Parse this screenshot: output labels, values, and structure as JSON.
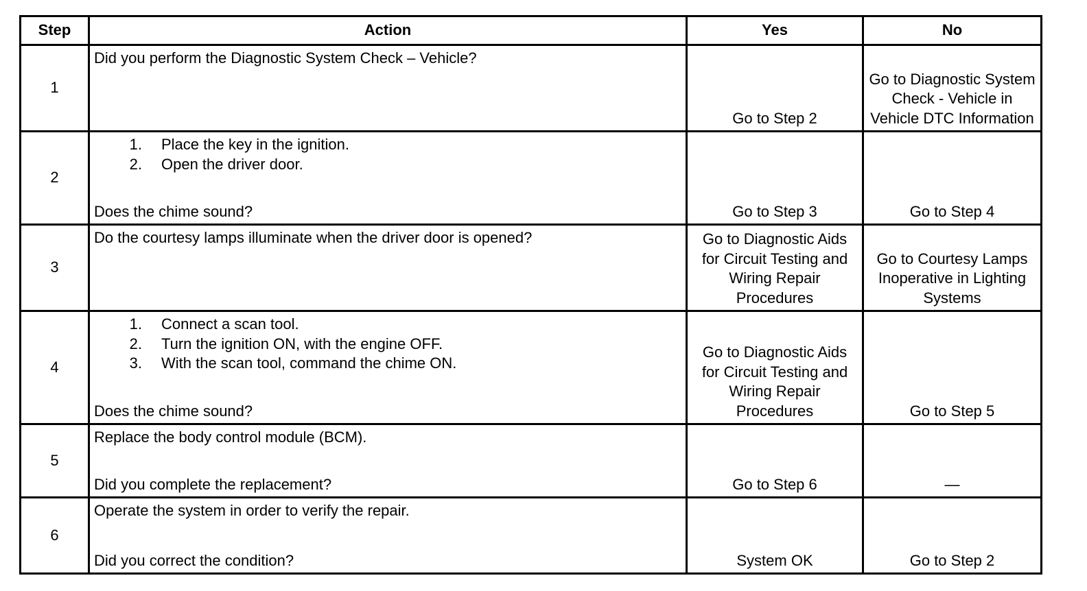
{
  "headers": {
    "step": "Step",
    "action": "Action",
    "yes": "Yes",
    "no": "No"
  },
  "rows": [
    {
      "step": "1",
      "intro": "Did you perform the Diagnostic System Check – Vehicle?",
      "items": [],
      "question": "",
      "yes": "Go to Step 2",
      "no": "Go to Diagnostic System Check - Vehicle in Vehicle DTC Information"
    },
    {
      "step": "2",
      "intro": "",
      "items": [
        {
          "n": "1.",
          "t": "Place the key in the ignition."
        },
        {
          "n": "2.",
          "t": "Open the driver door."
        }
      ],
      "question": "Does the chime sound?",
      "yes": "Go to Step 3",
      "no": "Go to Step 4"
    },
    {
      "step": "3",
      "intro": "Do the courtesy lamps illuminate when the driver door is opened?",
      "items": [],
      "question": "",
      "yes": "Go to Diagnostic Aids for Circuit Testing and Wiring Repair Procedures",
      "no": "Go to Courtesy Lamps Inoperative in Lighting Systems"
    },
    {
      "step": "4",
      "intro": "",
      "items": [
        {
          "n": "1.",
          "t": "Connect a scan tool."
        },
        {
          "n": "2.",
          "t": "Turn the ignition ON, with the engine OFF."
        },
        {
          "n": "3.",
          "t": "With the scan tool, command the chime ON."
        }
      ],
      "question": "Does the chime sound?",
      "yes": "Go to Diagnostic Aids for Circuit Testing and Wiring Repair Procedures",
      "no": "Go to Step 5"
    },
    {
      "step": "5",
      "intro": "Replace the body control module (BCM).",
      "items": [],
      "question": "Did you complete the replacement?",
      "yes": "Go to Step 6",
      "no": "—"
    },
    {
      "step": "6",
      "intro": "Operate the system in order to verify the repair.",
      "items": [],
      "question": "Did you correct the condition?",
      "yes": "System OK",
      "no": "Go to Step 2"
    }
  ]
}
